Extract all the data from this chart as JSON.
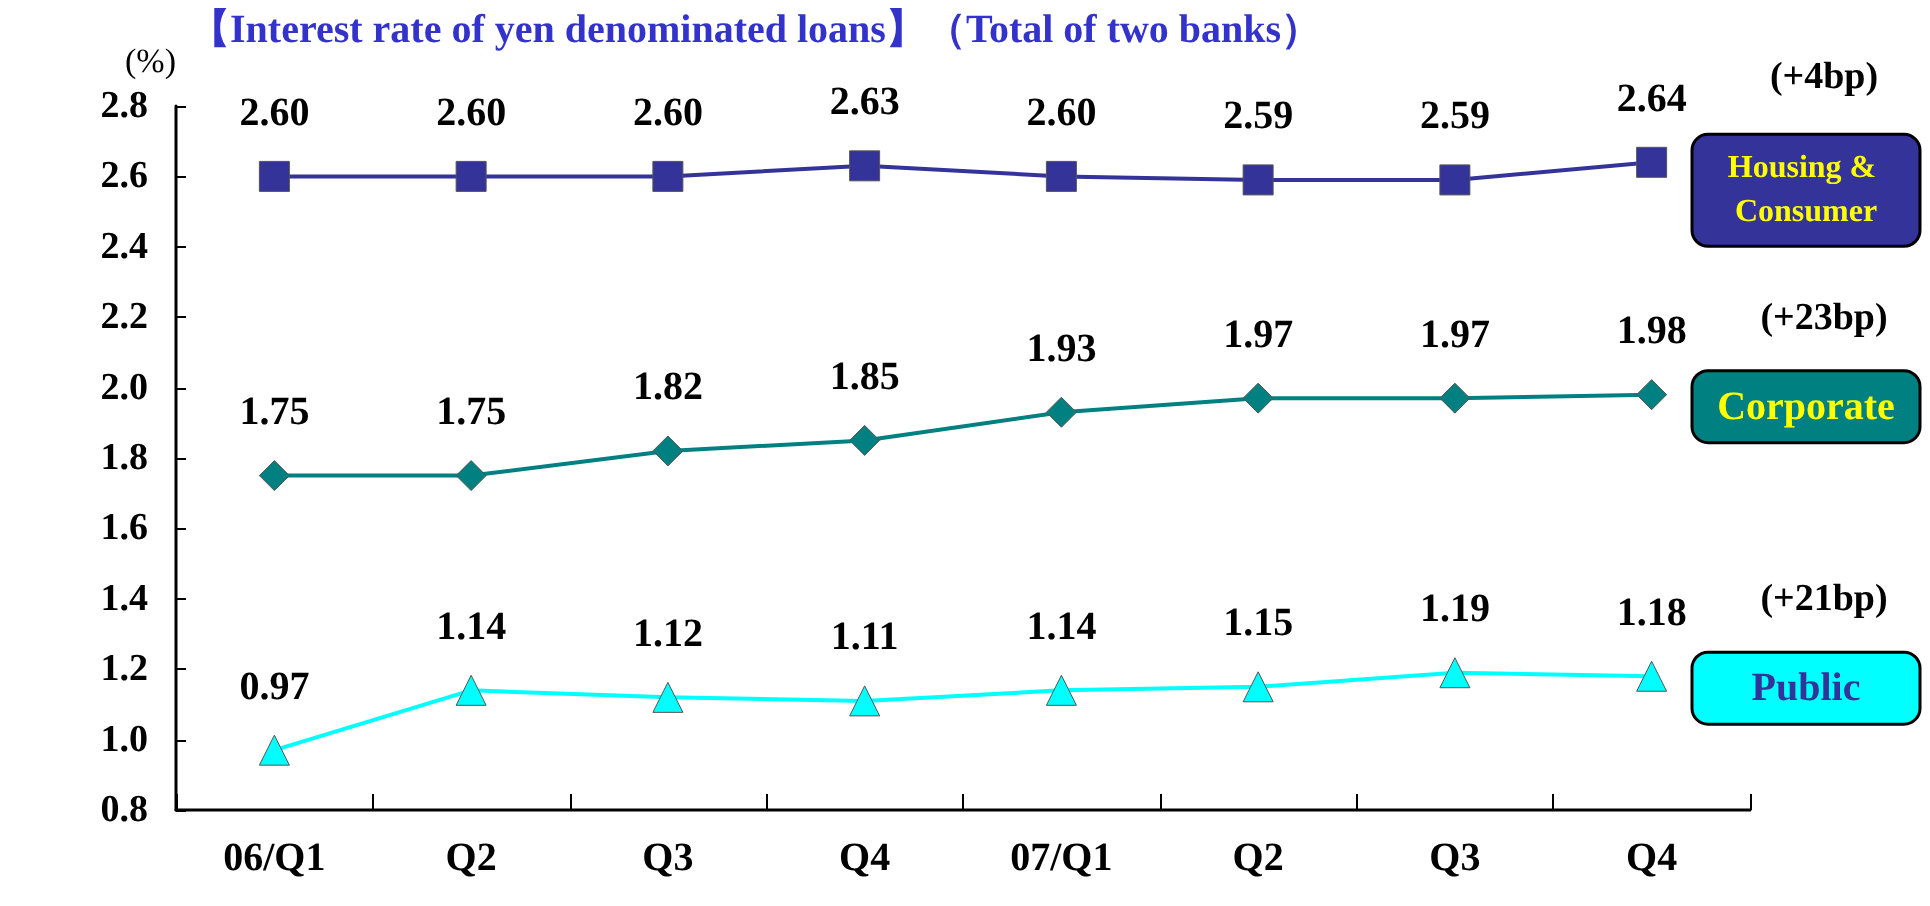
{
  "chart_data": {
    "type": "line",
    "title": "【Interest rate of yen denominated loans】（Total of two banks）",
    "ylabel": "(%)",
    "categories": [
      "06/Q1",
      "Q2",
      "Q3",
      "Q4",
      "07/Q1",
      "Q2",
      "Q3",
      "Q4"
    ],
    "series": [
      {
        "name": "Housing & Consumer",
        "color": "#333399",
        "marker": "square",
        "values": [
          2.6,
          2.6,
          2.6,
          2.63,
          2.6,
          2.59,
          2.59,
          2.64
        ],
        "value_labels": [
          "2.60",
          "2.60",
          "2.60",
          "2.63",
          "2.60",
          "2.59",
          "2.59",
          "2.64"
        ]
      },
      {
        "name": "Corporate",
        "color": "#008080",
        "marker": "diamond",
        "values": [
          1.75,
          1.75,
          1.82,
          1.85,
          1.93,
          1.97,
          1.97,
          1.98
        ],
        "value_labels": [
          "1.75",
          "1.75",
          "1.82",
          "1.85",
          "1.93",
          "1.97",
          "1.97",
          "1.98"
        ]
      },
      {
        "name": "Public",
        "color": "#00ffff",
        "marker": "triangle",
        "values": [
          0.97,
          1.14,
          1.12,
          1.11,
          1.14,
          1.15,
          1.19,
          1.18
        ],
        "value_labels": [
          "0.97",
          "1.14",
          "1.12",
          "1.11",
          "1.14",
          "1.15",
          "1.19",
          "1.18"
        ]
      }
    ],
    "annotations": [
      "(+4bp)",
      "(+23bp)",
      "(+21bp)"
    ],
    "ylim": [
      0.8,
      2.8
    ],
    "yticks": [
      0.8,
      {
        "value": 1,
        "label": "1.0"
      },
      1.2,
      1.4,
      1.6,
      1.8,
      {
        "value": 2,
        "label": "2.0"
      },
      2.2,
      2.4,
      2.6,
      2.8
    ],
    "grid": false,
    "legend": false,
    "line_style": "solid"
  }
}
